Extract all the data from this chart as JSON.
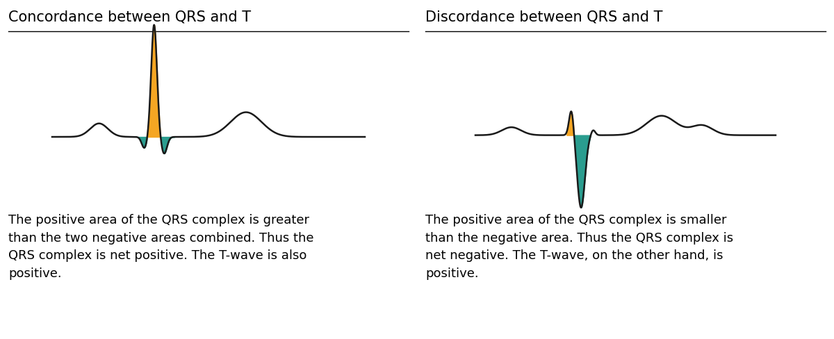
{
  "title_left": "Concordance between QRS and T",
  "title_right": "Discordance between QRS and T",
  "text_left": "The positive area of the QRS complex is greater\nthan the two negative areas combined. Thus the\nQRS complex is net positive. The T-wave is also\npositive.",
  "text_right": "The positive area of the QRS complex is smaller\nthan the negative area. Thus the QRS complex is\nnet negative. The T-wave, on the other hand, is\npositive.",
  "color_orange": "#F5A623",
  "color_teal": "#2A9D8F",
  "color_line": "#1a1a1a",
  "bg_color": "#ffffff",
  "title_fontsize": 15,
  "text_fontsize": 13
}
